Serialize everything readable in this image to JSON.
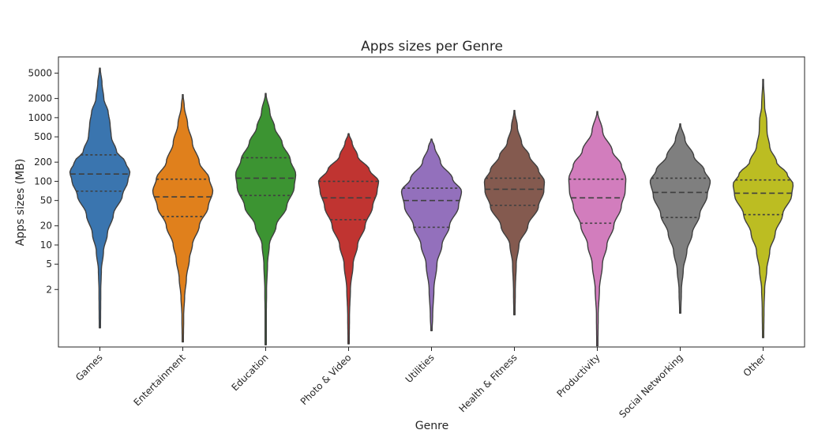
{
  "chart_data": {
    "type": "violin",
    "title": "Apps sizes per Genre",
    "xlabel": "Genre",
    "ylabel": "Apps sizes (MB)",
    "y_scale": "log",
    "ylim": [
      0.25,
      9000
    ],
    "y_ticks": [
      2,
      5,
      10,
      20,
      50,
      100,
      200,
      500,
      1000,
      2000,
      5000
    ],
    "inner": "quartile",
    "grid": false,
    "categories": [
      "Games",
      "Entertainment",
      "Education",
      "Photo & Video",
      "Utilities",
      "Health & Fitness",
      "Productivity",
      "Social Networking",
      "Other"
    ],
    "series": [
      {
        "name": "Games",
        "color": "#3a75af",
        "min": 0.5,
        "max": 6000,
        "q1": 70,
        "median": 130,
        "q3": 260,
        "density": [
          [
            0.5,
            0.02
          ],
          [
            1,
            0.025
          ],
          [
            2,
            0.03
          ],
          [
            4,
            0.05
          ],
          [
            8,
            0.12
          ],
          [
            15,
            0.25
          ],
          [
            30,
            0.45
          ],
          [
            60,
            0.75
          ],
          [
            100,
            0.93
          ],
          [
            140,
            1.0
          ],
          [
            200,
            0.85
          ],
          [
            300,
            0.55
          ],
          [
            500,
            0.38
          ],
          [
            800,
            0.34
          ],
          [
            1200,
            0.28
          ],
          [
            2000,
            0.13
          ],
          [
            3500,
            0.07
          ],
          [
            6000,
            0.01
          ]
        ]
      },
      {
        "name": "Entertainment",
        "color": "#e0801c",
        "min": 0.3,
        "max": 2300,
        "q1": 28,
        "median": 57,
        "q3": 108,
        "density": [
          [
            0.3,
            0.02
          ],
          [
            0.8,
            0.03
          ],
          [
            1.5,
            0.06
          ],
          [
            3,
            0.12
          ],
          [
            6,
            0.22
          ],
          [
            10,
            0.32
          ],
          [
            20,
            0.55
          ],
          [
            40,
            0.85
          ],
          [
            70,
            1.0
          ],
          [
            110,
            0.88
          ],
          [
            200,
            0.55
          ],
          [
            400,
            0.32
          ],
          [
            800,
            0.16
          ],
          [
            1500,
            0.05
          ],
          [
            2300,
            0.01
          ]
        ]
      },
      {
        "name": "Education",
        "color": "#3c9432",
        "min": 0.27,
        "max": 2400,
        "q1": 60,
        "median": 112,
        "q3": 235,
        "density": [
          [
            0.27,
            0.02
          ],
          [
            0.7,
            0.02
          ],
          [
            2,
            0.03
          ],
          [
            5,
            0.06
          ],
          [
            10,
            0.12
          ],
          [
            20,
            0.35
          ],
          [
            40,
            0.7
          ],
          [
            80,
            0.95
          ],
          [
            130,
            1.0
          ],
          [
            220,
            0.82
          ],
          [
            400,
            0.55
          ],
          [
            700,
            0.3
          ],
          [
            1200,
            0.14
          ],
          [
            2400,
            0.01
          ]
        ]
      },
      {
        "name": "Photo & Video",
        "color": "#c03431",
        "min": 0.28,
        "max": 560,
        "q1": 25,
        "median": 55,
        "q3": 100,
        "density": [
          [
            0.28,
            0.02
          ],
          [
            0.8,
            0.03
          ],
          [
            2,
            0.06
          ],
          [
            5,
            0.15
          ],
          [
            10,
            0.3
          ],
          [
            20,
            0.55
          ],
          [
            40,
            0.8
          ],
          [
            70,
            0.95
          ],
          [
            100,
            1.0
          ],
          [
            150,
            0.7
          ],
          [
            250,
            0.3
          ],
          [
            400,
            0.12
          ],
          [
            560,
            0.01
          ]
        ]
      },
      {
        "name": "Utilities",
        "color": "#9370bc",
        "min": 0.45,
        "max": 460,
        "q1": 19,
        "median": 50,
        "q3": 78,
        "density": [
          [
            0.45,
            0.02
          ],
          [
            0.8,
            0.04
          ],
          [
            2,
            0.08
          ],
          [
            5,
            0.18
          ],
          [
            10,
            0.35
          ],
          [
            20,
            0.6
          ],
          [
            40,
            0.9
          ],
          [
            70,
            1.0
          ],
          [
            110,
            0.7
          ],
          [
            200,
            0.3
          ],
          [
            350,
            0.1
          ],
          [
            460,
            0.01
          ]
        ]
      },
      {
        "name": "Health & Fitness",
        "color": "#845a4f",
        "min": 0.8,
        "max": 1300,
        "q1": 42,
        "median": 75,
        "q3": 112,
        "density": [
          [
            0.8,
            0.02
          ],
          [
            2,
            0.03
          ],
          [
            5,
            0.06
          ],
          [
            10,
            0.15
          ],
          [
            20,
            0.45
          ],
          [
            40,
            0.8
          ],
          [
            70,
            0.98
          ],
          [
            100,
            1.0
          ],
          [
            150,
            0.8
          ],
          [
            250,
            0.5
          ],
          [
            400,
            0.24
          ],
          [
            700,
            0.1
          ],
          [
            1300,
            0.01
          ]
        ]
      },
      {
        "name": "Productivity",
        "color": "#d27dbd",
        "min": 0.26,
        "max": 1250,
        "q1": 22,
        "median": 55,
        "q3": 108,
        "density": [
          [
            0.26,
            0.02
          ],
          [
            0.8,
            0.03
          ],
          [
            2,
            0.07
          ],
          [
            5,
            0.17
          ],
          [
            10,
            0.32
          ],
          [
            20,
            0.55
          ],
          [
            40,
            0.8
          ],
          [
            70,
            0.93
          ],
          [
            110,
            0.95
          ],
          [
            180,
            0.8
          ],
          [
            300,
            0.5
          ],
          [
            600,
            0.18
          ],
          [
            1250,
            0.01
          ]
        ]
      },
      {
        "name": "Social Networking",
        "color": "#7f7f7f",
        "min": 0.85,
        "max": 800,
        "q1": 27,
        "median": 67,
        "q3": 112,
        "density": [
          [
            0.85,
            0.02
          ],
          [
            2,
            0.04
          ],
          [
            4,
            0.1
          ],
          [
            8,
            0.22
          ],
          [
            15,
            0.4
          ],
          [
            30,
            0.65
          ],
          [
            60,
            0.9
          ],
          [
            100,
            1.0
          ],
          [
            150,
            0.8
          ],
          [
            250,
            0.45
          ],
          [
            450,
            0.16
          ],
          [
            800,
            0.01
          ]
        ]
      },
      {
        "name": "Other",
        "color": "#bcbd22",
        "min": 0.35,
        "max": 4000,
        "q1": 30,
        "median": 65,
        "q3": 105,
        "density": [
          [
            0.35,
            0.02
          ],
          [
            1,
            0.03
          ],
          [
            2,
            0.05
          ],
          [
            4,
            0.12
          ],
          [
            8,
            0.22
          ],
          [
            15,
            0.4
          ],
          [
            30,
            0.65
          ],
          [
            60,
            0.95
          ],
          [
            90,
            1.0
          ],
          [
            130,
            0.8
          ],
          [
            200,
            0.45
          ],
          [
            350,
            0.22
          ],
          [
            600,
            0.13
          ],
          [
            900,
            0.12
          ],
          [
            1500,
            0.05
          ],
          [
            4000,
            0.01
          ]
        ]
      }
    ]
  }
}
